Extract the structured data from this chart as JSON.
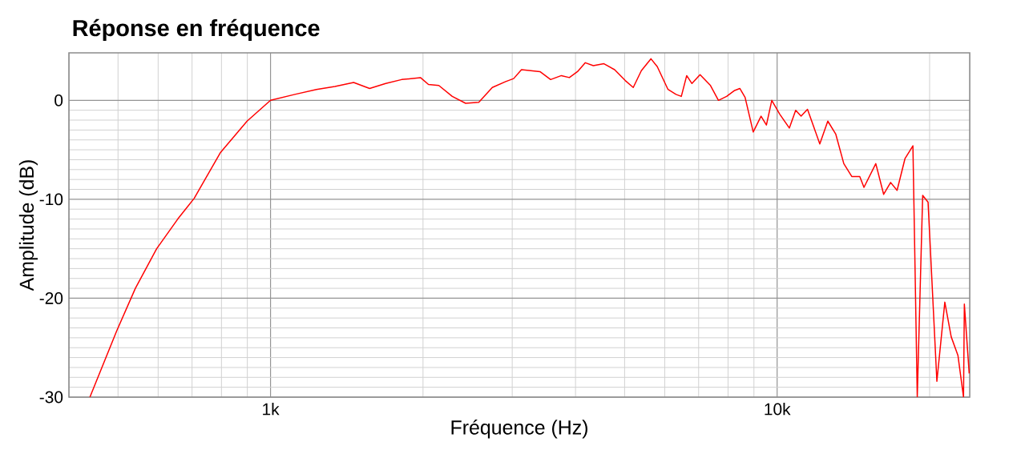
{
  "chart_data": {
    "type": "line",
    "title": "Réponse en fréquence",
    "xlabel": "Fréquence (Hz)",
    "ylabel": "Amplitude (dB)",
    "log": "x",
    "grid": true,
    "marker": "none",
    "line_style": "solid",
    "xlim": [
      400,
      24000
    ],
    "ylim": [
      -30,
      4.8
    ],
    "xticks": [
      {
        "value": 1000,
        "label": "1k"
      },
      {
        "value": 10000,
        "label": "10k"
      }
    ],
    "yticks": [
      0,
      -10,
      -20,
      -30
    ],
    "x": [
      440,
      497,
      541,
      596,
      656,
      707,
      796,
      899,
      1000,
      1117,
      1232,
      1340,
      1459,
      1569,
      1688,
      1815,
      1977,
      2050,
      2149,
      2284,
      2427,
      2577,
      2740,
      2912,
      3020,
      3129,
      3403,
      3572,
      3751,
      3890,
      4036,
      4182,
      4337,
      4551,
      4777,
      5014,
      5200,
      5395,
      5635,
      5800,
      6090,
      6315,
      6470,
      6630,
      6790,
      7045,
      7387,
      7660,
      7950,
      8245,
      8440,
      8645,
      8970,
      9295,
      9525,
      9760,
      10120,
      10570,
      10880,
      11150,
      11480,
      12140,
      12590,
      13050,
      13540,
      14040,
      14560,
      14840,
      15660,
      16230,
      16750,
      17250,
      17880,
      18540,
      18910,
      19380,
      19860,
      20670,
      21430,
      22060,
      22750,
      23330,
      23420,
      23940
    ],
    "series": [
      {
        "color": "#ff0000",
        "values": [
          -30,
          -23.3,
          -19.0,
          -15.0,
          -12.0,
          -9.9,
          -5.3,
          -2.1,
          0,
          0.6,
          1.1,
          1.4,
          1.8,
          1.2,
          1.7,
          2.1,
          2.3,
          1.6,
          1.5,
          0.4,
          -0.3,
          -0.2,
          1.3,
          1.9,
          2.2,
          3.1,
          2.9,
          2.1,
          2.5,
          2.3,
          2.9,
          3.8,
          3.5,
          3.7,
          3.1,
          2.0,
          1.3,
          3.0,
          4.2,
          3.4,
          1.1,
          0.6,
          0.4,
          2.5,
          1.7,
          2.6,
          1.5,
          0,
          0.4,
          1.0,
          1.2,
          0.3,
          -3.2,
          -1.6,
          -2.5,
          0,
          -1.4,
          -2.8,
          -1.0,
          -1.6,
          -0.9,
          -4.4,
          -2.1,
          -3.4,
          -6.4,
          -7.7,
          -7.7,
          -8.8,
          -6.4,
          -9.5,
          -8.3,
          -9.1,
          -5.9,
          -4.6,
          -30,
          -9.6,
          -10.3,
          -28.4,
          -20.4,
          -23.9,
          -25.8,
          -30,
          -20.6,
          -27.6
        ]
      }
    ]
  }
}
